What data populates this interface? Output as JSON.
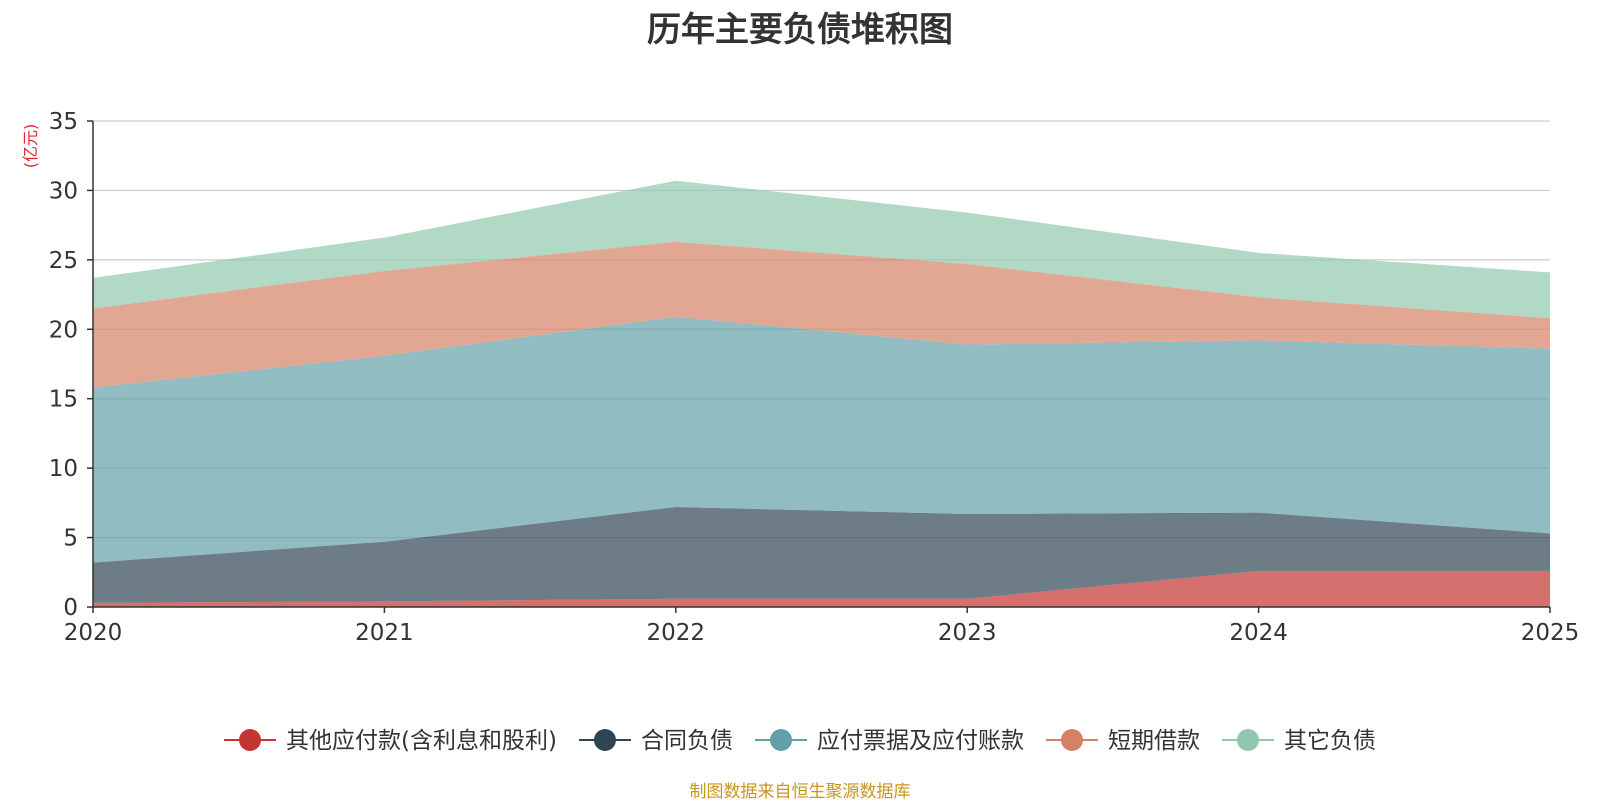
{
  "chart_data": {
    "type": "area",
    "stacked": true,
    "title": "历年主要负债堆积图",
    "ylabel": "(亿元)",
    "xlabel": "",
    "categories": [
      "2020",
      "2021",
      "2022",
      "2023",
      "2024",
      "2025"
    ],
    "ylim": [
      0,
      35
    ],
    "yticks": [
      0,
      5,
      10,
      15,
      20,
      25,
      30,
      35
    ],
    "grid": true,
    "legend_position": "bottom",
    "series": [
      {
        "name": "其他应付款(含利息和股利)",
        "color": "#c23531",
        "values": [
          0.3,
          0.4,
          0.6,
          0.6,
          2.6,
          2.6
        ]
      },
      {
        "name": "合同负债",
        "color": "#2f4554",
        "values": [
          2.9,
          4.3,
          6.6,
          6.1,
          4.2,
          2.7
        ]
      },
      {
        "name": "应付票据及应付账款",
        "color": "#61a0a8",
        "values": [
          12.6,
          13.4,
          13.7,
          12.2,
          12.4,
          13.3
        ]
      },
      {
        "name": "短期借款",
        "color": "#d48265",
        "values": [
          5.7,
          6.1,
          5.4,
          5.8,
          3.1,
          2.2
        ]
      },
      {
        "name": "其它负债",
        "color": "#91c7ae",
        "values": [
          2.2,
          2.4,
          4.4,
          3.7,
          3.2,
          3.3
        ]
      }
    ]
  },
  "footer": {
    "source": "制图数据来自恒生聚源数据库"
  }
}
